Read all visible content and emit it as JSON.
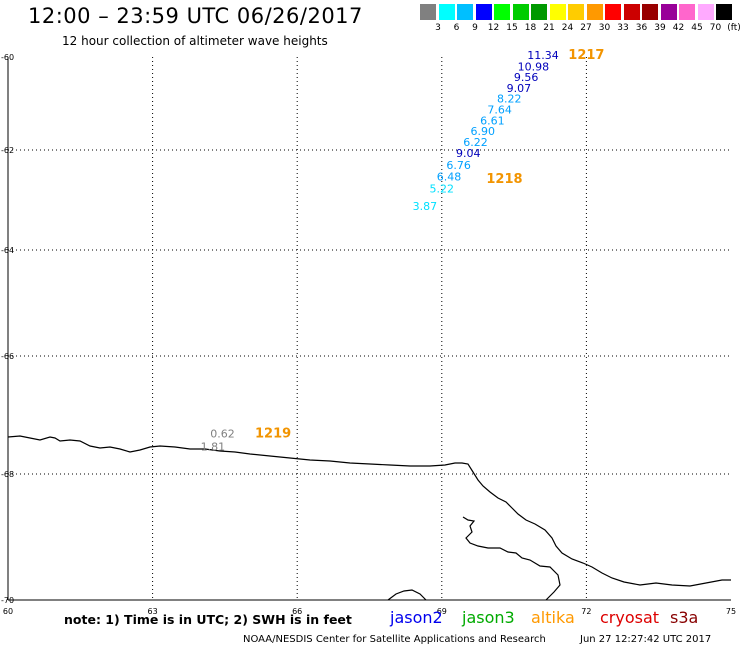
{
  "header": {
    "title": "12:00 – 23:59 UTC 06/26/2017",
    "subtitle": "12 hour collection of altimeter wave heights"
  },
  "color_scale": {
    "labels": [
      "3",
      "6",
      "9",
      "12",
      "15",
      "18",
      "21",
      "24",
      "27",
      "30",
      "33",
      "36",
      "39",
      "42",
      "45",
      "70"
    ],
    "unit": "(ft)",
    "colors": [
      "#808080",
      "#00ffff",
      "#00bfff",
      "#0000ff",
      "#00ff00",
      "#00cc00",
      "#009900",
      "#ffff00",
      "#ffcc00",
      "#ff9900",
      "#ff0000",
      "#cc0000",
      "#990000",
      "#990099",
      "#ff66cc",
      "#ffaaff",
      "#000000"
    ]
  },
  "axes": {
    "lat_labels": [
      "-60",
      "-62",
      "-64",
      "-66",
      "-68",
      "-70"
    ],
    "lon_labels": [
      "60",
      "63",
      "66",
      "69",
      "72",
      "75"
    ]
  },
  "observations": [
    {
      "value": "11.34",
      "lat": -60.04,
      "lon": 71.1,
      "color": "#0000bb"
    },
    {
      "value": "10.98",
      "lat": -60.29,
      "lon": 70.9,
      "color": "#0000bb"
    },
    {
      "value": "9.56",
      "lat": -60.52,
      "lon": 70.75,
      "color": "#0000bb"
    },
    {
      "value": "9.07",
      "lat": -60.75,
      "lon": 70.6,
      "color": "#0000bb"
    },
    {
      "value": "8.22",
      "lat": -60.98,
      "lon": 70.4,
      "color": "#00a0ff"
    },
    {
      "value": "7.64",
      "lat": -61.22,
      "lon": 70.2,
      "color": "#00a0ff"
    },
    {
      "value": "6.61",
      "lat": -61.45,
      "lon": 70.05,
      "color": "#00a0ff"
    },
    {
      "value": "6.90",
      "lat": -61.68,
      "lon": 69.85,
      "color": "#00a0ff"
    },
    {
      "value": "6.22",
      "lat": -61.91,
      "lon": 69.7,
      "color": "#00a0ff"
    },
    {
      "value": "9.04",
      "lat": -62.14,
      "lon": 69.55,
      "color": "#0000bb"
    },
    {
      "value": "6.76",
      "lat": -62.38,
      "lon": 69.35,
      "color": "#00a0ff"
    },
    {
      "value": "6.48",
      "lat": -62.61,
      "lon": 69.15,
      "color": "#00a0ff"
    },
    {
      "value": "5.22",
      "lat": -62.85,
      "lon": 69.0,
      "color": "#00e0ff"
    },
    {
      "value": "3.87",
      "lat": -63.2,
      "lon": 68.65,
      "color": "#00e0ff"
    },
    {
      "value": "0.62",
      "lat": -67.38,
      "lon": 64.45,
      "color": "#808080"
    },
    {
      "value": "1.81",
      "lat": -67.6,
      "lon": 64.25,
      "color": "#808080"
    }
  ],
  "track_labels": [
    {
      "label": "1217",
      "lat": -60.04,
      "lon": 72.0
    },
    {
      "label": "1218",
      "lat": -62.66,
      "lon": 70.3
    },
    {
      "label": "1219",
      "lat": -67.38,
      "lon": 65.5
    }
  ],
  "footer": {
    "note": "note: 1) Time is in UTC; 2) SWH is in feet",
    "satellites": [
      {
        "name": "jason2",
        "color": "#0000ee"
      },
      {
        "name": "jason3",
        "color": "#00aa00"
      },
      {
        "name": "altika",
        "color": "#ff9900"
      },
      {
        "name": "cryosat",
        "color": "#dd0000"
      },
      {
        "name": "s3a",
        "color": "#880000"
      }
    ],
    "credit": "NOAA/NESDIS Center for Satellite Applications and Research",
    "timestamp": "Jun 27 12:27:42 UTC 2017"
  }
}
